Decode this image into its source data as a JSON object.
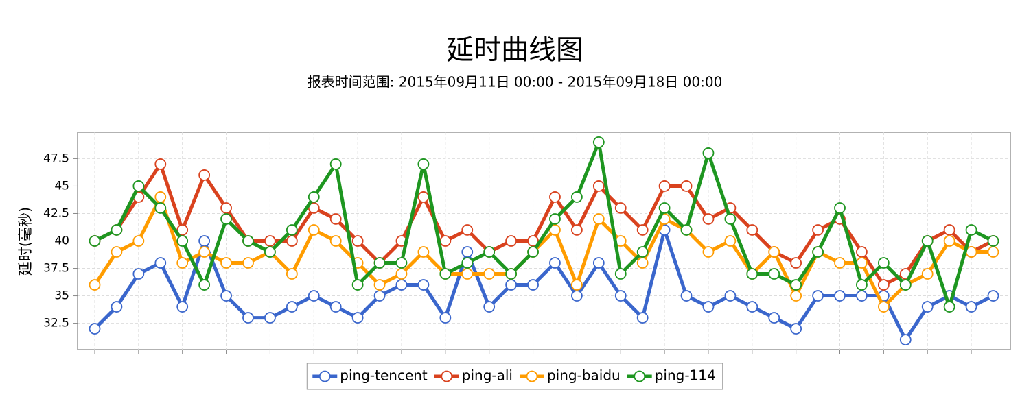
{
  "chart_data": {
    "type": "line",
    "title": "延时曲线图",
    "subtitle": "报表时间范围: 2015年09月11日 00:00 - 2015年09月18日 00:00",
    "y_label": "延时(毫秒)",
    "categories": [
      null,
      null,
      null,
      null,
      null,
      null,
      null,
      null,
      null,
      null,
      null,
      null,
      null,
      null,
      null,
      null,
      null,
      null,
      null,
      null,
      null,
      null,
      null,
      null,
      null,
      null,
      null,
      null,
      null,
      null,
      null,
      null,
      null,
      null,
      null,
      null,
      null,
      null,
      null,
      null,
      null,
      null
    ],
    "series": [
      {
        "name": "ping-tencent",
        "color": "#3a66cc",
        "values": [
          32,
          34,
          37,
          38,
          34,
          40,
          35,
          33,
          33,
          34,
          35,
          34,
          33,
          35,
          36,
          36,
          33,
          39,
          34,
          36,
          36,
          38,
          35,
          38,
          35,
          33,
          41,
          35,
          34,
          35,
          34,
          33,
          32,
          35,
          35,
          35,
          35,
          31,
          34,
          35,
          34,
          35
        ]
      },
      {
        "name": "ping-ali",
        "color": "#d9421e",
        "values": [
          40,
          41,
          44,
          47,
          41,
          46,
          43,
          40,
          40,
          40,
          43,
          42,
          40,
          38,
          40,
          44,
          40,
          41,
          39,
          40,
          40,
          44,
          41,
          45,
          43,
          41,
          45,
          45,
          42,
          43,
          41,
          39,
          38,
          41,
          42,
          39,
          36,
          37,
          40,
          41,
          39,
          40
        ]
      },
      {
        "name": "ping-baidu",
        "color": "#ff9c00",
        "values": [
          36,
          39,
          40,
          44,
          38,
          39,
          38,
          38,
          39,
          37,
          41,
          40,
          38,
          36,
          37,
          39,
          37,
          37,
          37,
          37,
          39,
          41,
          36,
          42,
          40,
          38,
          42,
          41,
          39,
          40,
          37,
          39,
          35,
          39,
          38,
          38,
          34,
          36,
          37,
          40,
          39,
          39
        ]
      },
      {
        "name": "ping-114",
        "color": "#1e9620",
        "values": [
          40,
          41,
          45,
          43,
          40,
          36,
          42,
          40,
          39,
          41,
          44,
          47,
          36,
          38,
          38,
          47,
          37,
          38,
          39,
          37,
          39,
          42,
          44,
          49,
          37,
          39,
          43,
          41,
          48,
          42,
          37,
          37,
          36,
          39,
          43,
          36,
          38,
          36,
          40,
          34,
          41,
          40
        ]
      }
    ],
    "ylim": [
      30.1,
      49.9
    ],
    "yticks": [
      32.5,
      35,
      37.5,
      40,
      42.5,
      45,
      47.5
    ],
    "grid": true,
    "legend": "bottom"
  }
}
